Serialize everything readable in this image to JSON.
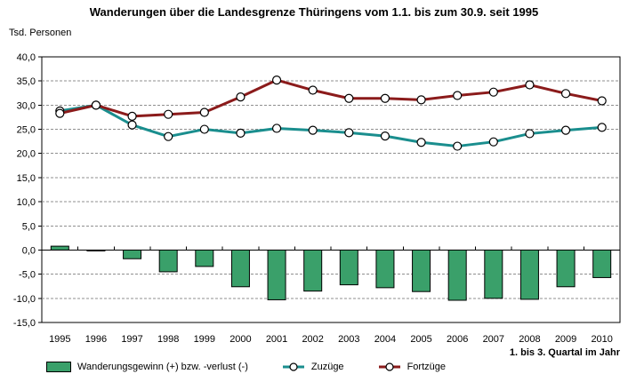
{
  "title": "Wanderungen über die Landesgrenze Thüringens vom 1.1. bis zum 30.9. seit 1995",
  "y_axis_title": "Tsd. Personen",
  "footnote": "1. bis 3. Quartal im Jahr",
  "colors": {
    "background": "#ffffff",
    "grid": "#8f8f8f",
    "axis": "#000000",
    "bar_green": "#3aa06a",
    "line_teal": "#1a8e8e",
    "line_darkred": "#8b1b1b",
    "marker_fill": "#ffffff"
  },
  "chart_data": {
    "type": "bar",
    "combo": "bar + line",
    "title": "Wanderungen über die Landesgrenze Thüringens vom 1.1. bis zum 30.9. seit 1995",
    "xlabel": "1. bis 3. Quartal im Jahr",
    "ylabel": "Tsd. Personen",
    "categories": [
      "1995",
      "1996",
      "1997",
      "1998",
      "1999",
      "2000",
      "2001",
      "2002",
      "2003",
      "2004",
      "2005",
      "2006",
      "2007",
      "2008",
      "2009",
      "2010"
    ],
    "series": [
      {
        "name": "Wanderungsgewinn (+) bzw. -verlust (-)",
        "type": "bar",
        "color": "#3aa06a",
        "values": [
          0.8,
          -0.1,
          -1.8,
          -4.5,
          -3.4,
          -7.6,
          -10.3,
          -8.5,
          -7.2,
          -7.8,
          -8.6,
          -10.4,
          -10.0,
          -10.2,
          -7.6,
          -5.7
        ]
      },
      {
        "name": "Zuzüge",
        "type": "line",
        "color": "#1a8e8e",
        "values": [
          28.8,
          30.0,
          25.9,
          23.5,
          25.0,
          24.2,
          25.2,
          24.8,
          24.3,
          23.6,
          22.3,
          21.5,
          22.4,
          24.1,
          24.8,
          25.4
        ]
      },
      {
        "name": "Fortzüge",
        "type": "line",
        "color": "#8b1b1b",
        "values": [
          28.3,
          30.0,
          27.7,
          28.1,
          28.5,
          31.7,
          35.2,
          33.1,
          31.4,
          31.4,
          31.1,
          32.0,
          32.7,
          34.2,
          32.4,
          30.9
        ]
      }
    ],
    "ylim": [
      -15,
      40
    ],
    "ytick_step": 5,
    "ytick_labels": [
      "40,0",
      "35,0",
      "30,0",
      "25,0",
      "20,0",
      "15,0",
      "10,0",
      "5,0",
      "0,0",
      "-5,0",
      "-10,0",
      "-15,0"
    ],
    "decimal_separator": ",",
    "grid": "horizontal dashed",
    "marker": "white circle, black outline",
    "legend_position": "bottom"
  }
}
